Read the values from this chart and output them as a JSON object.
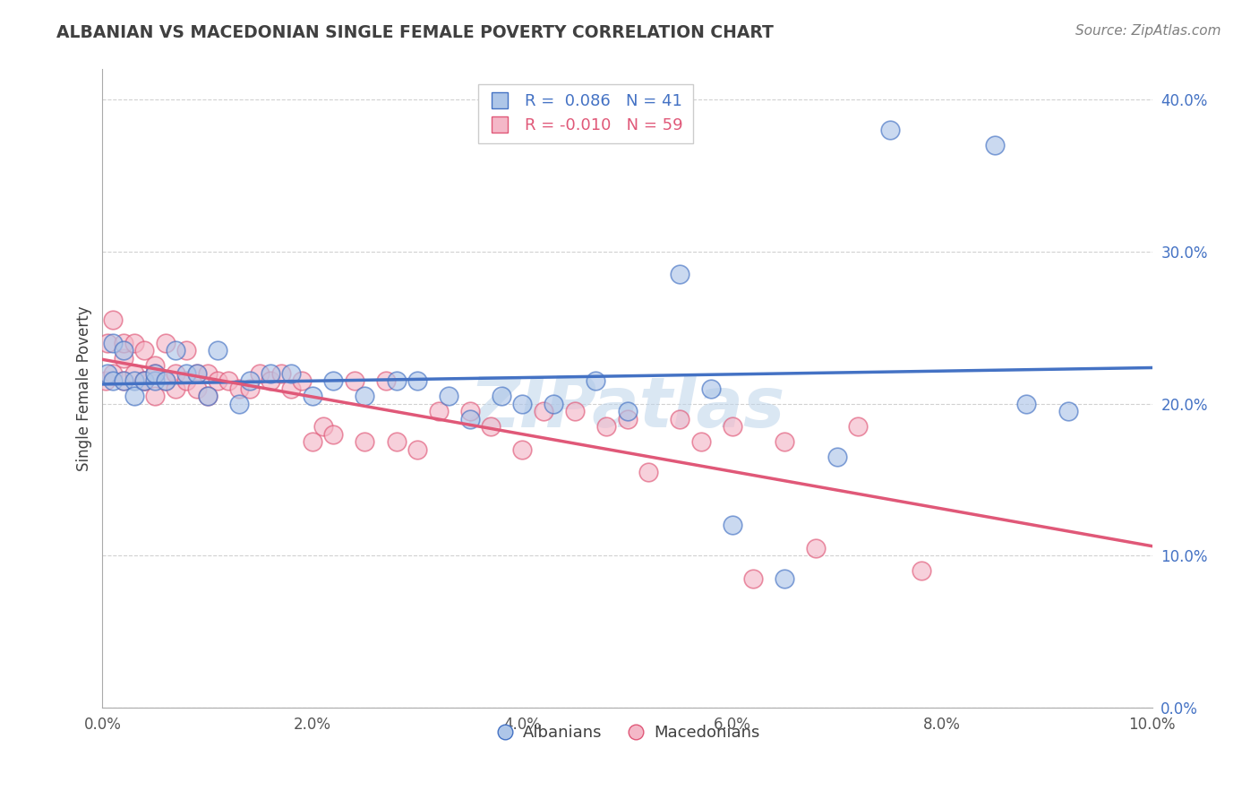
{
  "title": "ALBANIAN VS MACEDONIAN SINGLE FEMALE POVERTY CORRELATION CHART",
  "source": "Source: ZipAtlas.com",
  "xlabel": "",
  "ylabel": "Single Female Poverty",
  "watermark": "ZIPatlas",
  "legend_labels": [
    "Albanians",
    "Macedonians"
  ],
  "albanian_R": 0.086,
  "albanian_N": 41,
  "macedonian_R": -0.01,
  "macedonian_N": 59,
  "albanian_color": "#aec6e8",
  "macedonian_color": "#f4b8c8",
  "albanian_line_color": "#4472c4",
  "macedonian_line_color": "#e05878",
  "xlim": [
    0.0,
    0.1
  ],
  "ylim": [
    0.0,
    0.42
  ],
  "xtick_vals": [
    0.0,
    0.02,
    0.04,
    0.06,
    0.08,
    0.1
  ],
  "ytick_vals": [
    0.0,
    0.1,
    0.2,
    0.3,
    0.4
  ],
  "albanians_x": [
    0.0005,
    0.001,
    0.001,
    0.002,
    0.002,
    0.003,
    0.003,
    0.004,
    0.005,
    0.005,
    0.006,
    0.007,
    0.008,
    0.009,
    0.01,
    0.011,
    0.013,
    0.014,
    0.016,
    0.018,
    0.02,
    0.022,
    0.025,
    0.028,
    0.03,
    0.033,
    0.035,
    0.038,
    0.04,
    0.043,
    0.047,
    0.05,
    0.055,
    0.058,
    0.06,
    0.065,
    0.07,
    0.075,
    0.085,
    0.088,
    0.092
  ],
  "albanians_y": [
    0.22,
    0.24,
    0.215,
    0.215,
    0.235,
    0.215,
    0.205,
    0.215,
    0.215,
    0.22,
    0.215,
    0.235,
    0.22,
    0.22,
    0.205,
    0.235,
    0.2,
    0.215,
    0.22,
    0.22,
    0.205,
    0.215,
    0.205,
    0.215,
    0.215,
    0.205,
    0.19,
    0.205,
    0.2,
    0.2,
    0.215,
    0.195,
    0.285,
    0.21,
    0.12,
    0.085,
    0.165,
    0.38,
    0.37,
    0.2,
    0.195
  ],
  "macedonians_x": [
    0.0003,
    0.0005,
    0.001,
    0.001,
    0.002,
    0.002,
    0.002,
    0.003,
    0.003,
    0.004,
    0.004,
    0.004,
    0.005,
    0.005,
    0.005,
    0.006,
    0.006,
    0.007,
    0.007,
    0.008,
    0.008,
    0.009,
    0.009,
    0.01,
    0.01,
    0.011,
    0.012,
    0.013,
    0.014,
    0.015,
    0.016,
    0.017,
    0.018,
    0.019,
    0.02,
    0.021,
    0.022,
    0.024,
    0.025,
    0.027,
    0.028,
    0.03,
    0.032,
    0.035,
    0.037,
    0.04,
    0.042,
    0.045,
    0.048,
    0.05,
    0.052,
    0.055,
    0.057,
    0.06,
    0.062,
    0.065,
    0.068,
    0.072,
    0.078
  ],
  "macedonians_y": [
    0.215,
    0.24,
    0.22,
    0.255,
    0.23,
    0.215,
    0.24,
    0.22,
    0.24,
    0.215,
    0.235,
    0.215,
    0.225,
    0.205,
    0.22,
    0.215,
    0.24,
    0.21,
    0.22,
    0.215,
    0.235,
    0.21,
    0.22,
    0.205,
    0.22,
    0.215,
    0.215,
    0.21,
    0.21,
    0.22,
    0.215,
    0.22,
    0.21,
    0.215,
    0.175,
    0.185,
    0.18,
    0.215,
    0.175,
    0.215,
    0.175,
    0.17,
    0.195,
    0.195,
    0.185,
    0.17,
    0.195,
    0.195,
    0.185,
    0.19,
    0.155,
    0.19,
    0.175,
    0.185,
    0.085,
    0.175,
    0.105,
    0.185,
    0.09
  ],
  "background_color": "#ffffff",
  "grid_color": "#cccccc",
  "title_color": "#404040",
  "source_color": "#808080"
}
